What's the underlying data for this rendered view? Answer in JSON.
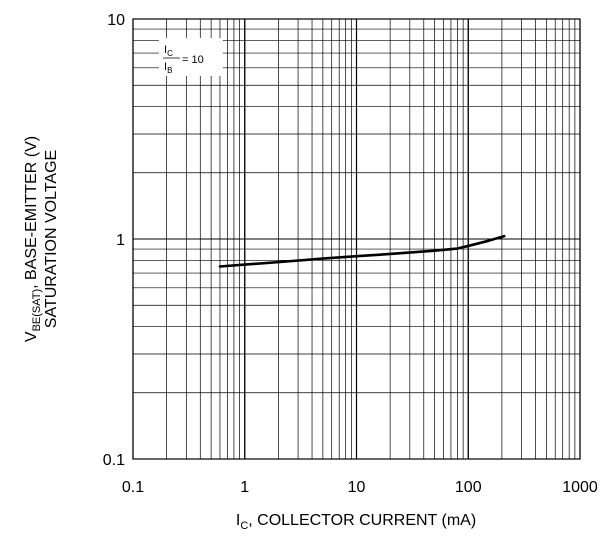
{
  "chart_data": {
    "type": "line",
    "x_scale": "log",
    "y_scale": "log",
    "xlim": [
      0.1,
      1000
    ],
    "ylim": [
      0.1,
      10
    ],
    "grid": true,
    "legend": "none",
    "x_ticks": [
      "0.1",
      "1",
      "10",
      "100",
      "1000"
    ],
    "y_ticks": [
      "0.1",
      "1",
      "10"
    ],
    "xlabel": {
      "main": "I",
      "sub": "C",
      "rest": ", COLLECTOR CURRENT (mA)"
    },
    "ylabel": {
      "line1_main": "V",
      "line1_sub": "BE(SAT)",
      "line1_rest": ", BASE-EMITTER (V)",
      "line2": "SATURATION VOLTAGE"
    },
    "annotation": {
      "num_main": "I",
      "num_sub": "C",
      "den_main": "I",
      "den_sub": "B",
      "value": "= 10"
    },
    "series": [
      {
        "x": [
          0.6,
          1,
          2,
          5,
          10,
          20,
          50,
          80,
          100,
          150,
          210
        ],
        "y": [
          0.75,
          0.765,
          0.785,
          0.815,
          0.835,
          0.855,
          0.885,
          0.905,
          0.93,
          0.98,
          1.03
        ],
        "color": "#000000"
      }
    ]
  }
}
